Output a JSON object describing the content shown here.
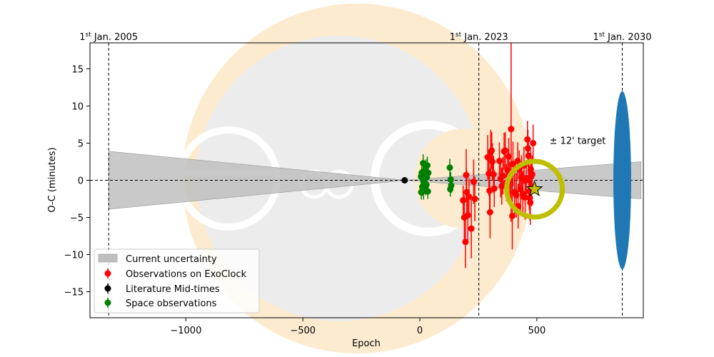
{
  "chart_data": {
    "type": "scatter",
    "title": "",
    "xlabel": "Epoch",
    "ylabel": "O-C (minutes)",
    "xlim": [
      -1410,
      955
    ],
    "ylim": [
      -18.5,
      18.5
    ],
    "xticks": [
      -1000,
      -500,
      0,
      500
    ],
    "xtick_labels": [
      "−1000",
      "−500",
      "0",
      "500"
    ],
    "yticks": [
      -15,
      -10,
      -5,
      0,
      5,
      10,
      15
    ],
    "ytick_labels": [
      "−15",
      "−10",
      "−5",
      "0",
      "5",
      "10",
      "15"
    ],
    "grid": false,
    "legend_position": "lower-left",
    "colors": {
      "exoclock": "#ff0000",
      "literature": "#000000",
      "space": "#008000",
      "uncertainty": "#bfbfbf",
      "target_ring": "#bfbf00",
      "star": "#bfbf00",
      "ellipse": "#1f77b4",
      "watermark_crescent": "#fdebd0",
      "watermark_disc": "#ececec"
    },
    "date_markers": [
      {
        "epoch": -1330,
        "label_prefix": "1",
        "label_sup": "st",
        "label_suffix": " Jan. 2005"
      },
      {
        "epoch": 252,
        "label_prefix": "1",
        "label_sup": "st",
        "label_suffix": " Jan. 2023"
      },
      {
        "epoch": 865,
        "label_prefix": "1",
        "label_sup": "st",
        "label_suffix": " Jan. 2030"
      }
    ],
    "uncertainty_band": {
      "center_epoch": -60,
      "left_epoch": -1330,
      "left_halfwidth": 3.9,
      "right_epoch": 945,
      "right_halfwidth": 2.5
    },
    "target": {
      "epoch": 490,
      "oc": -1.2,
      "label": "± 12' target"
    },
    "prediction_ellipse": {
      "epoch": 865,
      "oc": 0,
      "half_width_epoch": 38,
      "half_height": 12
    },
    "legend": [
      {
        "name": "Current uncertainty",
        "kind": "band"
      },
      {
        "name": "Observations on ExoClock",
        "kind": "exoclock"
      },
      {
        "name": "Literature Mid-times",
        "kind": "literature"
      },
      {
        "name": "Space observations",
        "kind": "space"
      }
    ],
    "series": [
      {
        "name": "Observations on ExoClock",
        "points": [
          {
            "x": 185,
            "y": -2.7,
            "err": 2.0
          },
          {
            "x": 190,
            "y": -5.0,
            "err": 3.0
          },
          {
            "x": 195,
            "y": -8.3,
            "err": 3.5
          },
          {
            "x": 198,
            "y": 0.7,
            "err": 3.5
          },
          {
            "x": 200,
            "y": -1.6,
            "err": 3.0
          },
          {
            "x": 205,
            "y": -4.7,
            "err": 3.5
          },
          {
            "x": 210,
            "y": -2.2,
            "err": 2.5
          },
          {
            "x": 220,
            "y": -6.5,
            "err": 4.0
          },
          {
            "x": 230,
            "y": -0.2,
            "err": 3.0
          },
          {
            "x": 235,
            "y": -2.5,
            "err": 3.0
          },
          {
            "x": 290,
            "y": 3.1,
            "err": 3.0
          },
          {
            "x": 295,
            "y": 0.9,
            "err": 3.0
          },
          {
            "x": 298,
            "y": -1.4,
            "err": 3.0
          },
          {
            "x": 300,
            "y": -4.3,
            "err": 3.5
          },
          {
            "x": 303,
            "y": 3.8,
            "err": 3.0
          },
          {
            "x": 307,
            "y": 4.0,
            "err": 2.5
          },
          {
            "x": 310,
            "y": 2.5,
            "err": 2.5
          },
          {
            "x": 315,
            "y": 0.8,
            "err": 2.5
          },
          {
            "x": 318,
            "y": -1.1,
            "err": 2.5
          },
          {
            "x": 340,
            "y": 2.6,
            "err": 2.5
          },
          {
            "x": 345,
            "y": 0.2,
            "err": 2.5
          },
          {
            "x": 350,
            "y": -0.8,
            "err": 2.5
          },
          {
            "x": 355,
            "y": 0.6,
            "err": 2.5
          },
          {
            "x": 360,
            "y": 3.9,
            "err": 2.5
          },
          {
            "x": 365,
            "y": 4.0,
            "err": 2.5
          },
          {
            "x": 370,
            "y": -0.3,
            "err": 2.5
          },
          {
            "x": 375,
            "y": 1.3,
            "err": 2.5
          },
          {
            "x": 380,
            "y": 3.2,
            "err": 2.5
          },
          {
            "x": 385,
            "y": 0.0,
            "err": 2.5
          },
          {
            "x": 390,
            "y": 6.9,
            "err": 12.5
          },
          {
            "x": 395,
            "y": -4.8,
            "err": 4.5
          },
          {
            "x": 398,
            "y": 2.2,
            "err": 3.0
          },
          {
            "x": 405,
            "y": -1.6,
            "err": 3.0
          },
          {
            "x": 412,
            "y": -2.0,
            "err": 3.0
          },
          {
            "x": 418,
            "y": 2.6,
            "err": 2.5
          },
          {
            "x": 420,
            "y": -3.5,
            "err": 3.0
          },
          {
            "x": 425,
            "y": 1.5,
            "err": 2.5
          },
          {
            "x": 430,
            "y": -1.2,
            "err": 3.0
          },
          {
            "x": 435,
            "y": 0.4,
            "err": 3.0
          },
          {
            "x": 440,
            "y": -1.8,
            "err": 3.0
          },
          {
            "x": 445,
            "y": 2.0,
            "err": 2.5
          },
          {
            "x": 450,
            "y": -2.3,
            "err": 3.0
          },
          {
            "x": 455,
            "y": 0.0,
            "err": 2.5
          },
          {
            "x": 460,
            "y": 5.5,
            "err": 2.5
          },
          {
            "x": 462,
            "y": 4.3,
            "err": 2.5
          },
          {
            "x": 464,
            "y": 3.3,
            "err": 2.5
          },
          {
            "x": 466,
            "y": 0.3,
            "err": 2.5
          },
          {
            "x": 468,
            "y": -1.5,
            "err": 2.5
          },
          {
            "x": 470,
            "y": -2.4,
            "err": 3.0
          },
          {
            "x": 472,
            "y": -3.0,
            "err": 3.0
          },
          {
            "x": 474,
            "y": 1.5,
            "err": 2.5
          },
          {
            "x": 476,
            "y": 0.5,
            "err": 2.5
          },
          {
            "x": 478,
            "y": -1.0,
            "err": 2.5
          },
          {
            "x": 480,
            "y": 0.8,
            "err": 2.5
          },
          {
            "x": 484,
            "y": 5.0,
            "err": 2.5
          }
        ]
      },
      {
        "name": "Literature Mid-times",
        "points": [
          {
            "x": -65,
            "y": 0.0,
            "err": 0.15
          }
        ]
      },
      {
        "name": "Space observations",
        "points": [
          {
            "x": 5,
            "y": 0.5,
            "err": 1.0
          },
          {
            "x": 6,
            "y": -1.6,
            "err": 1.0
          },
          {
            "x": 8,
            "y": 1.0,
            "err": 1.0
          },
          {
            "x": 10,
            "y": -0.9,
            "err": 1.2
          },
          {
            "x": 12,
            "y": 0.2,
            "err": 1.0
          },
          {
            "x": 14,
            "y": 2.3,
            "err": 1.2
          },
          {
            "x": 16,
            "y": -1.4,
            "err": 1.2
          },
          {
            "x": 18,
            "y": 1.2,
            "err": 1.0
          },
          {
            "x": 20,
            "y": -0.3,
            "err": 1.0
          },
          {
            "x": 22,
            "y": 0.8,
            "err": 1.0
          },
          {
            "x": 24,
            "y": -1.0,
            "err": 1.0
          },
          {
            "x": 26,
            "y": 1.8,
            "err": 1.0
          },
          {
            "x": 28,
            "y": -0.6,
            "err": 1.0
          },
          {
            "x": 30,
            "y": 0.4,
            "err": 1.0
          },
          {
            "x": 32,
            "y": 2.0,
            "err": 1.2
          },
          {
            "x": 34,
            "y": -1.5,
            "err": 1.0
          },
          {
            "x": 36,
            "y": 1.0,
            "err": 1.0
          },
          {
            "x": 128,
            "y": 1.7,
            "err": 1.2
          },
          {
            "x": 130,
            "y": -1.2,
            "err": 1.0
          },
          {
            "x": 132,
            "y": 0.1,
            "err": 1.0
          },
          {
            "x": 134,
            "y": -0.7,
            "err": 1.0
          }
        ]
      }
    ]
  }
}
